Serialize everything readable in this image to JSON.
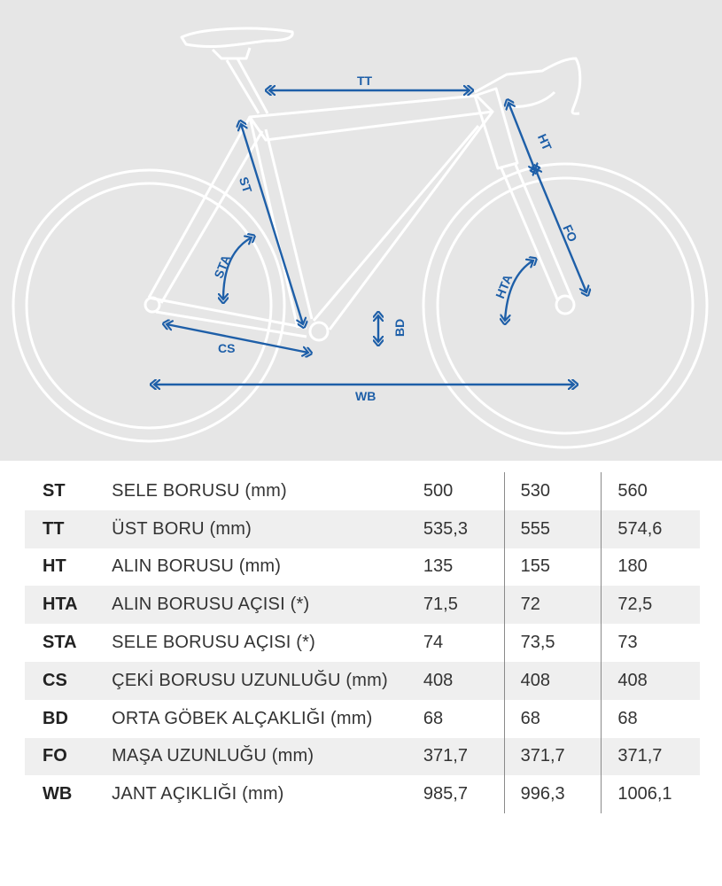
{
  "diagram": {
    "labels": {
      "tt": "TT",
      "ht": "HT",
      "st": "ST",
      "sta": "STA",
      "fo": "FO",
      "hta": "HTA",
      "bd": "BD",
      "cs": "CS",
      "wb": "WB"
    }
  },
  "colors": {
    "accent": "#1e5fa8",
    "diagram_bg": "#e6e6e6",
    "frame": "#ffffff",
    "row_stripe": "#efefef"
  },
  "table": {
    "rows": [
      {
        "abbr": "ST",
        "label": "SELE BORUSU (mm)",
        "values": [
          "500",
          "530",
          "560"
        ]
      },
      {
        "abbr": "TT",
        "label": "ÜST BORU (mm)",
        "values": [
          "535,3",
          "555",
          "574,6"
        ]
      },
      {
        "abbr": "HT",
        "label": "ALIN BORUSU (mm)",
        "values": [
          "135",
          "155",
          "180"
        ]
      },
      {
        "abbr": "HTA",
        "label": "ALIN BORUSU AÇISI (*)",
        "values": [
          "71,5",
          "72",
          "72,5"
        ]
      },
      {
        "abbr": "STA",
        "label": "SELE BORUSU AÇISI (*)",
        "values": [
          "74",
          "73,5",
          "73"
        ]
      },
      {
        "abbr": "CS",
        "label": "ÇEKİ BORUSU UZUNLUĞU (mm)",
        "values": [
          "408",
          "408",
          "408"
        ]
      },
      {
        "abbr": "BD",
        "label": "ORTA GÖBEK ALÇAKLIĞI (mm)",
        "values": [
          "68",
          "68",
          "68"
        ]
      },
      {
        "abbr": "FO",
        "label": "MAŞA UZUNLUĞU (mm)",
        "values": [
          "371,7",
          "371,7",
          "371,7"
        ]
      },
      {
        "abbr": "WB",
        "label": "JANT AÇIKLIĞI (mm)",
        "values": [
          "985,7",
          "996,3",
          "1006,1"
        ]
      }
    ]
  }
}
